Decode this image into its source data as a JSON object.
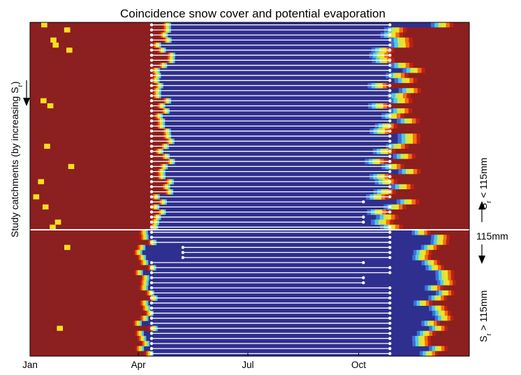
{
  "chart_data": {
    "type": "heatmap",
    "title": "Coincidence snow cover and potential evaporation",
    "ylabel": "Study catchments (by increasing S",
    "ylabel_sub": "r",
    "ylabel_end": ")",
    "x_tick_labels": [
      "Jan",
      "Apr",
      "Jul",
      "Oct"
    ],
    "x_tick_days": [
      0,
      90,
      181,
      273
    ],
    "xlim_days": [
      0,
      365
    ],
    "n_catchments": 66,
    "divider_after_row": 41,
    "right_labels": {
      "upper_prefix": "S",
      "upper_sub": "r",
      "upper_suffix": " < 115mm",
      "middle": "115mm",
      "lower_prefix": "S",
      "lower_sub": "r",
      "lower_suffix": " > 115mm"
    },
    "colors": {
      "snow": "#8c1f1f",
      "background_ep": "#2f2f8f",
      "dots": "#ffffff"
    },
    "colormap": [
      "#2f2f8f",
      "#3f6fd8",
      "#4fc8e8",
      "#c8e850",
      "#f8e020",
      "#f07010",
      "#c02010",
      "#8c1f1f"
    ]
  }
}
